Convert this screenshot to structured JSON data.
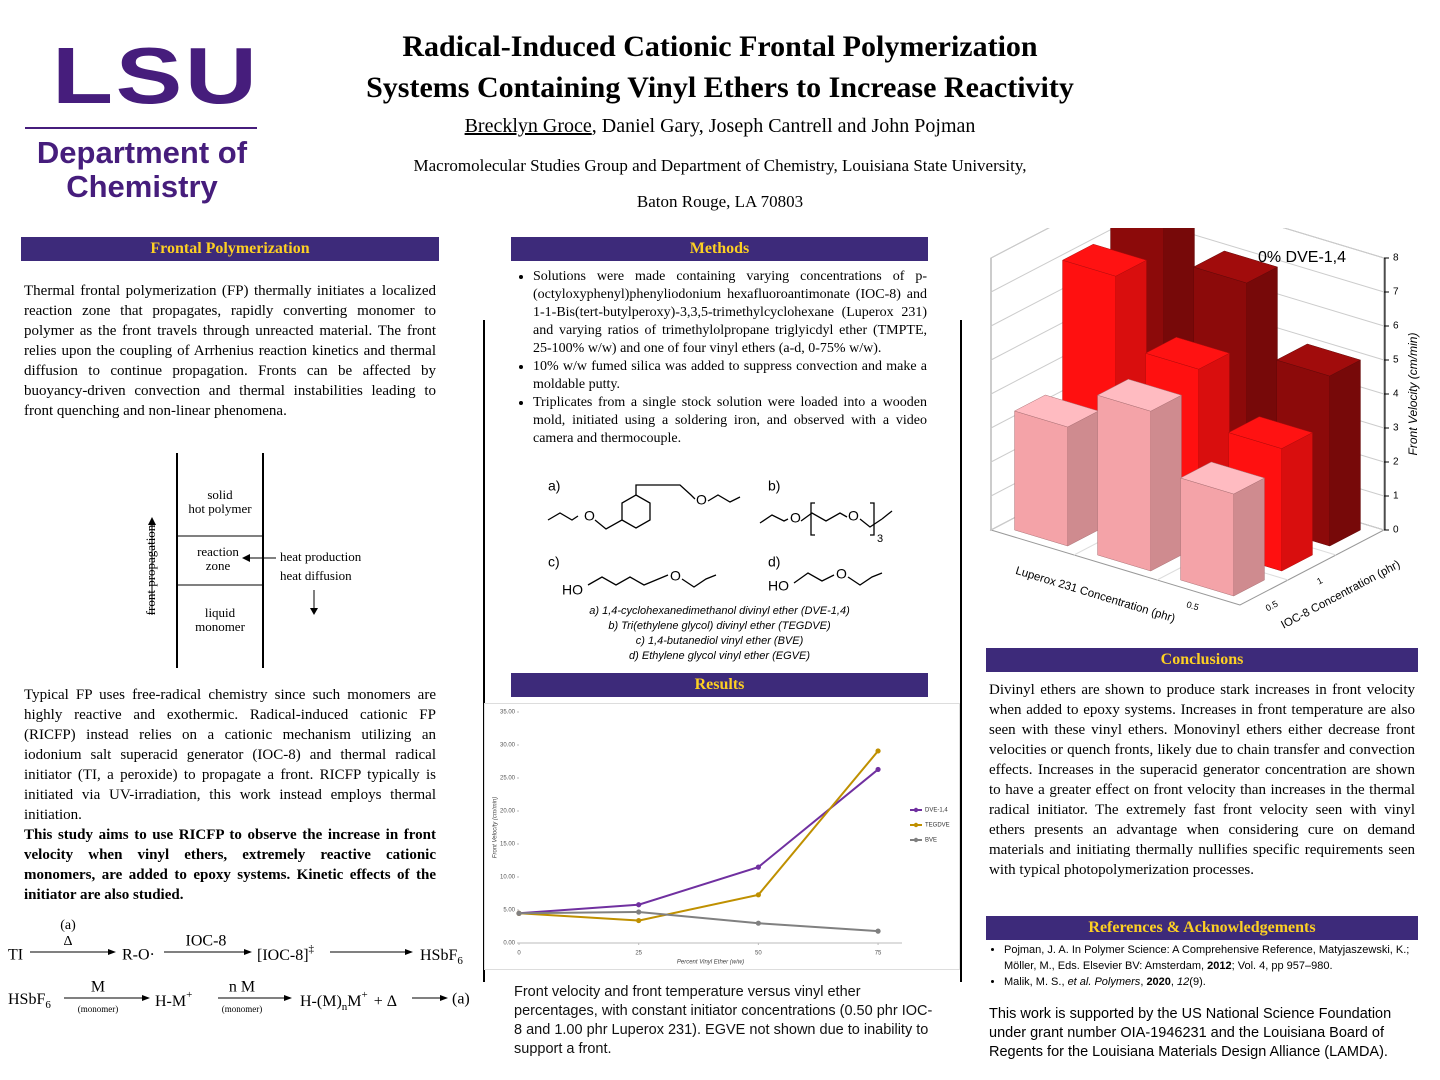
{
  "logo": {
    "wordmark": "LSU",
    "department": [
      "Department of",
      "Chemistry"
    ]
  },
  "header": {
    "title": [
      "Radical-Induced Cationic Frontal Polymerization",
      "Systems Containing Vinyl Ethers to Increase Reactivity"
    ],
    "presenter": "Brecklyn Groce",
    "coauthors": ", Daniel Gary, Joseph Cantrell and John Pojman",
    "affiliation": [
      "Macromolecular Studies Group and Department of Chemistry, Louisiana State University,",
      "Baton Rouge, LA 70803"
    ]
  },
  "frontal": {
    "heading": "Frontal Polymerization",
    "intro": "Thermal frontal polymerization (FP) thermally initiates a localized reaction zone that propagates, rapidly converting monomer to polymer as the front travels through unreacted material. The front relies upon the coupling of Arrhenius reaction kinetics and thermal diffusion to continue propagation. Fronts can be affected by buoyancy-driven convection and thermal instabilities leading to front quenching and non-linear phenomena.",
    "diagram": {
      "solid": [
        "solid",
        "hot polymer"
      ],
      "zone": [
        "reaction",
        "zone"
      ],
      "liquid": [
        "liquid",
        "monomer"
      ],
      "direction": "front propagation",
      "heat": [
        "heat production",
        "heat diffusion"
      ]
    },
    "body": "Typical FP uses free-radical chemistry since such monomers are highly reactive and exothermic. Radical-induced cationic FP (RICFP) instead relies on a cationic mechanism utilizing an iodonium salt superacid generator (IOC-8) and thermal radical initiator (TI, a peroxide) to propagate a front. RICFP typically is initiated via UV-irradiation, this work instead employs thermal initiation.",
    "aim": "This study aims to use RICFP to observe the increase in front velocity when vinyl ethers, extremely reactive cationic monomers, are added to epoxy systems. Kinetic effects of the initiator are also studied."
  },
  "scheme": {
    "initiator": "TI",
    "condition": [
      "(a)",
      "Δ"
    ],
    "radical": "R-O·",
    "oxidant": "IOC-8",
    "intermediate": "[IOC-8]",
    "intermediate_sup": "‡",
    "acid": "HSbF",
    "acid_sub": "6",
    "monomer": "M",
    "monomer_note": "(monomer)",
    "cation": "H-M",
    "charge": "+",
    "propagation": "n M",
    "chain": "H-(M)",
    "chain_sub": "n",
    "chain_end": "M",
    "heat": "+  Δ",
    "loop": "(a)"
  },
  "methods": {
    "heading": "Methods",
    "bullets": [
      "Solutions were made containing varying concentrations of p-(octyloxyphenyl)phenyliodonium hexafluoroantimonate (IOC-8) and 1-1-Bis(tert-butylperoxy)-3,3,5-trimethylcyclohexane (Luperox 231) and varying ratios of trimethylolpropane triglyicdyl ether (TMPTE, 25-100% w/w) and one of four vinyl ethers (a-d, 0-75% w/w).",
      "10% w/w fumed silica was added to suppress convection and make a moldable putty.",
      "Triplicates from a single stock solution were loaded into a wooden mold, initiated using a soldering iron, and observed with a video camera and thermocouple."
    ],
    "structures": {
      "labels": [
        "a)",
        "b)",
        "c)",
        "d)"
      ],
      "oxygen": "O",
      "hydroxyl": "HO",
      "repeat": "3"
    },
    "captions": [
      "a)  1,4-cyclohexanedimethanol divinyl ether (DVE-1,4)",
      "b)  Tri(ethylene glycol) divinyl ether (TEGDVE)",
      "c)  1,4-butanediol vinyl ether (BVE)",
      "d)  Ethylene glycol vinyl ether (EGVE)"
    ]
  },
  "results": {
    "heading": "Results",
    "caption": "Front velocity and front temperature versus vinyl ether percentages, with constant initiator concentrations (0.50 phr IOC-8 and 1.00 phr Luperox 231). EGVE not shown due to inability to support a front."
  },
  "chart_data": [
    {
      "type": "line",
      "x_label": "Percent Vinyl Ether (w/w)",
      "y_label": "Front Velocity (cm/min)",
      "x": [
        0,
        25,
        50,
        75
      ],
      "series": [
        {
          "name": "DVE-1,4",
          "color": "#7030a0",
          "values": [
            4.5,
            5.8,
            11.5,
            26.3
          ]
        },
        {
          "name": "TEGDVE",
          "color": "#bf9000",
          "values": [
            4.5,
            3.4,
            7.3,
            29.1
          ]
        },
        {
          "name": "BVE",
          "color": "#808080",
          "values": [
            4.5,
            4.7,
            3.0,
            1.8
          ]
        }
      ],
      "xlim": [
        0,
        80
      ],
      "xticks": [
        0,
        25,
        50,
        75
      ],
      "ylim": [
        0,
        35
      ],
      "yticks": [
        {
          "value": 0,
          "label": "0.00"
        },
        {
          "value": 5,
          "label": "5.00"
        },
        {
          "value": 10,
          "label": "10.00"
        },
        {
          "value": 15,
          "label": "15.00"
        },
        {
          "value": 20,
          "label": "20.00"
        },
        {
          "value": 25,
          "label": "25.00"
        },
        {
          "value": 30,
          "label": "30.00"
        },
        {
          "value": 35,
          "label": "35.00"
        }
      ],
      "grid": false
    },
    {
      "type": "bar3d",
      "title": "0% DVE-1,4",
      "x_label": "Luperox 231 Concentration (phr)",
      "depth_label": "IOC-8 Concentration (phr)",
      "z_label": "Front Velocity (cm/min)",
      "categories": [
        "0.5",
        null,
        null
      ],
      "depth_categories": [
        "0.5",
        "1",
        null
      ],
      "series": [
        {
          "color": "#f4a3a8",
          "values": [
            3.0,
            4.7,
            3.5
          ]
        },
        {
          "color": "#ff1010",
          "values": [
            3.6,
            5.2,
            7.2
          ]
        },
        {
          "color": "#8c0a0a",
          "values": [
            5.0,
            7.0,
            8.3
          ]
        }
      ],
      "zlim": [
        0,
        8
      ],
      "zticks": [
        0,
        1,
        2,
        3,
        4,
        5,
        6,
        7,
        8
      ],
      "grid": true
    }
  ],
  "conclusions": {
    "heading": "Conclusions",
    "text": "Divinyl ethers are shown to produce stark increases in front velocity when added to epoxy systems. Increases in front temperature are also seen with these vinyl ethers. Monovinyl ethers either decrease front velocities or quench fronts, likely due to chain transfer and convection effects. Increases in the superacid generator concentration are shown to have a greater effect on front velocity than increases in the thermal radical initiator. The extremely fast front velocity seen with vinyl ethers presents an advantage when considering cure on demand materials and initiating thermally nullifies specific requirements seen with typical photopolymerization processes."
  },
  "references": {
    "heading": "References & Acknowledgements",
    "ref1": [
      "Pojman, J. A. In Polymer Science: A Comprehensive Reference, Matyjaszewski, K.; Möller, M., Eds. Elsevier BV: Amsterdam, ",
      "2012",
      "; Vol. 4, pp 957–980."
    ],
    "ref2": [
      "Malik, M. S., ",
      "et al. Polymers",
      ", ",
      "2020",
      ", ",
      "12",
      "(9)."
    ],
    "acknowledgement": "This work is supported by the US National Science Foundation under grant number OIA-1946231 and the Louisiana Board of Regents for the Louisiana Materials Design Alliance (LAMDA)."
  }
}
